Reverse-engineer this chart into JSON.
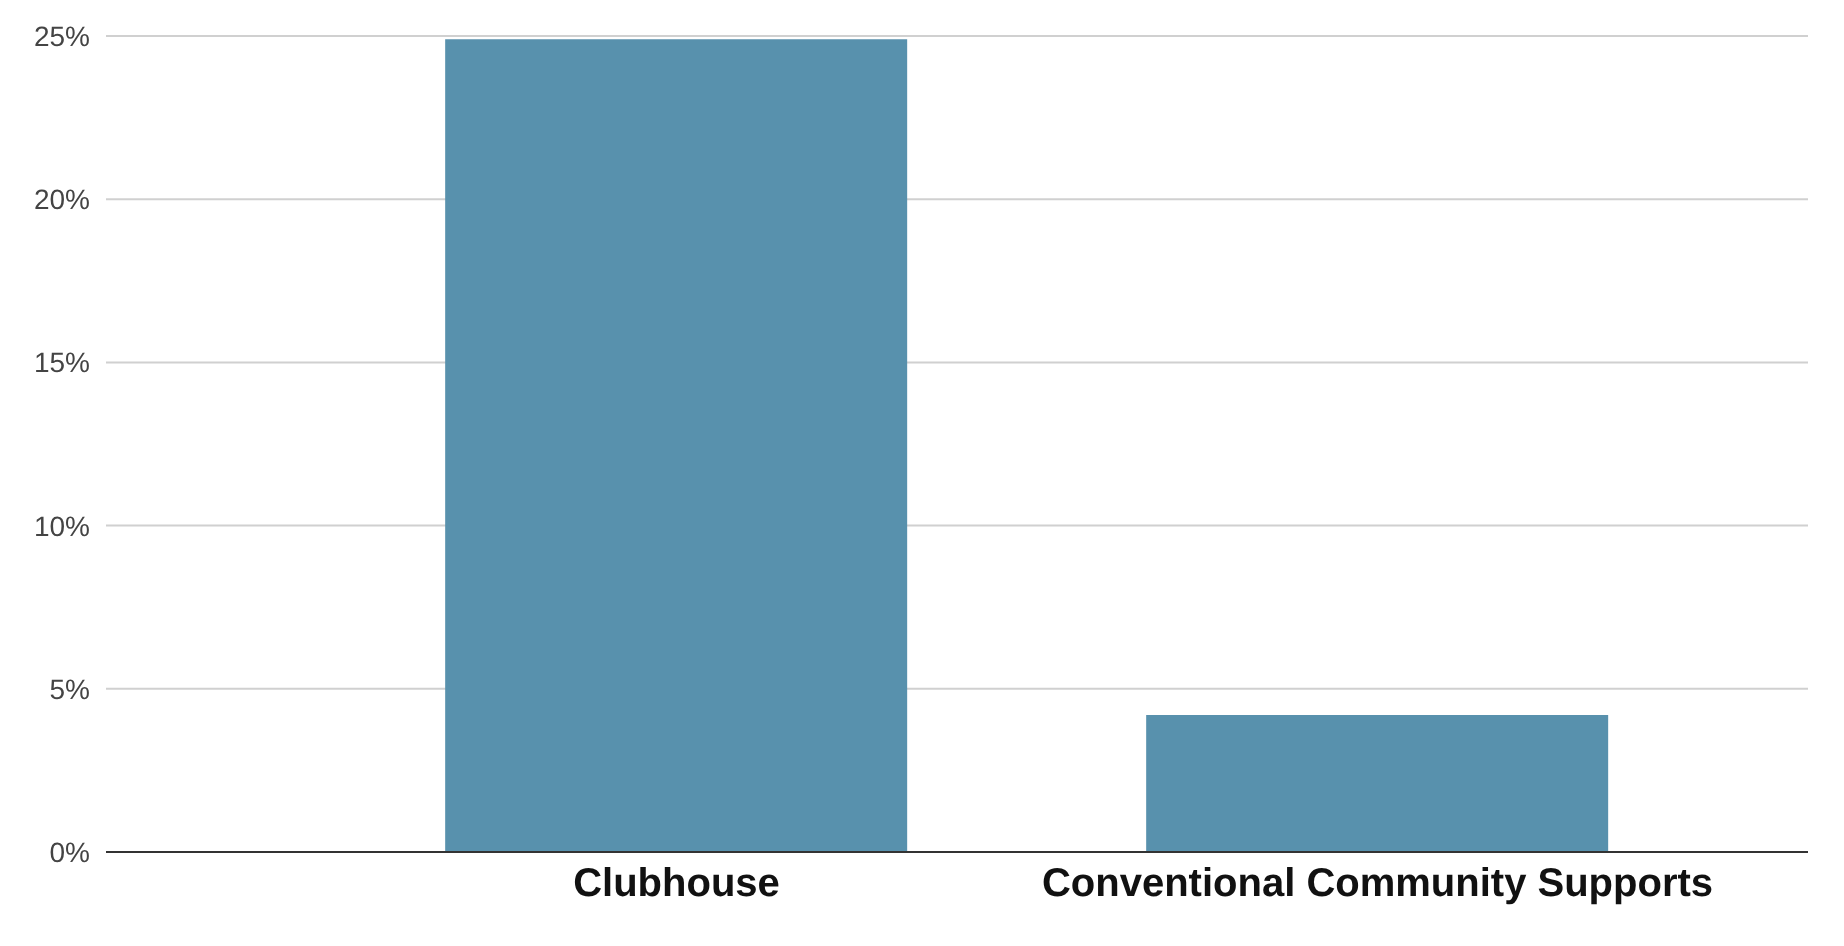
{
  "chart_data": {
    "type": "bar",
    "categories": [
      "Clubhouse",
      "Conventional Community Supports"
    ],
    "values": [
      24.9,
      4.2
    ],
    "color": "#5891ad",
    "ylim": [
      0,
      25
    ],
    "yticks": [
      {
        "value": 0,
        "label": "0%"
      },
      {
        "value": 5,
        "label": "5%"
      },
      {
        "value": 10,
        "label": "10%"
      },
      {
        "value": 15,
        "label": "15%"
      },
      {
        "value": 20,
        "label": "20%"
      },
      {
        "value": 25,
        "label": "25%"
      }
    ],
    "grid": "y"
  }
}
